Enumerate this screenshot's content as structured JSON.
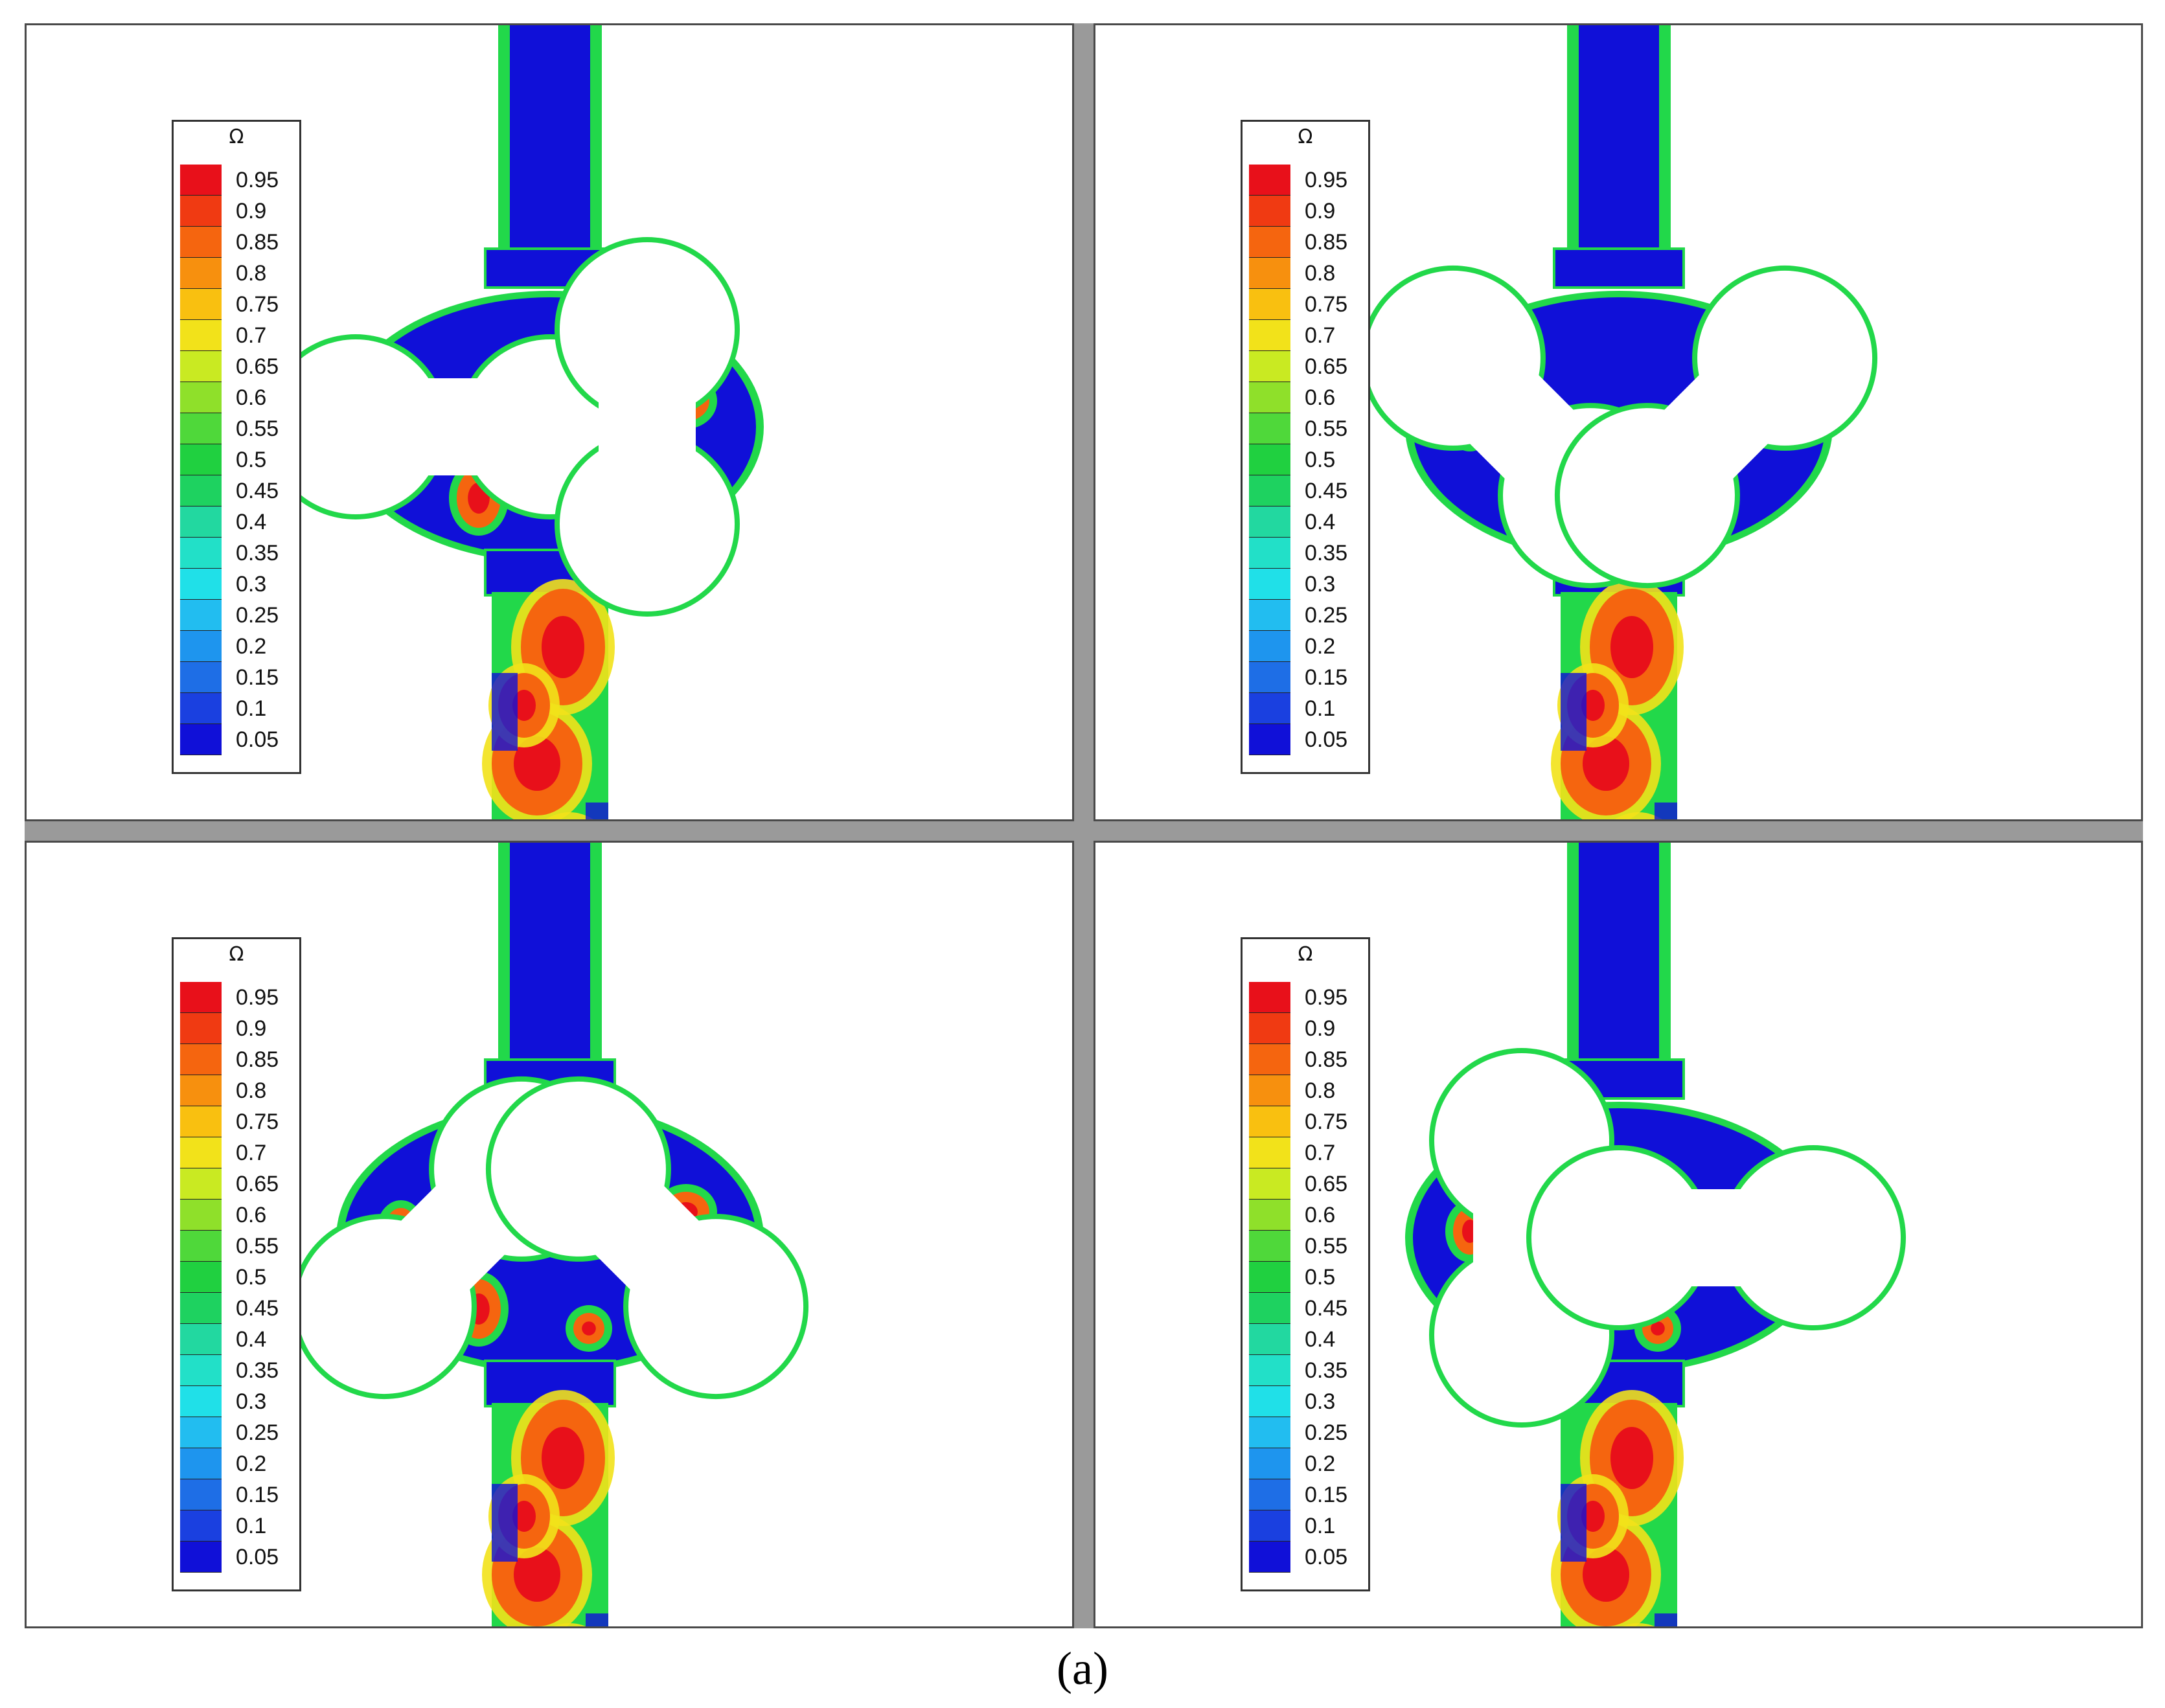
{
  "figure": {
    "caption": "(a)",
    "background": "#ffffff",
    "separator_color": "#9a9a9a",
    "panel_count": 4
  },
  "legend": {
    "symbol": "Ω",
    "levels": [
      "0.95",
      "0.9",
      "0.85",
      "0.8",
      "0.75",
      "0.7",
      "0.65",
      "0.6",
      "0.55",
      "0.5",
      "0.45",
      "0.4",
      "0.35",
      "0.3",
      "0.25",
      "0.2",
      "0.15",
      "0.1",
      "0.05"
    ],
    "colors": [
      "#e8101a",
      "#f03a12",
      "#f5650f",
      "#f7900e",
      "#f9c010",
      "#f2e21a",
      "#c9ea22",
      "#8fe02a",
      "#4fd83a",
      "#20d040",
      "#1ed260",
      "#22d8a0",
      "#22e0c8",
      "#20e0e8",
      "#22bdf0",
      "#1e95ee",
      "#1e6ee6",
      "#1a40e0",
      "#1010d8"
    ]
  },
  "panels": [
    {
      "id": "top-left",
      "rotor_left_angle": 0,
      "rotor_right_angle": 90
    },
    {
      "id": "top-right",
      "rotor_left_angle": 45,
      "rotor_right_angle": 135
    },
    {
      "id": "bottom-left",
      "rotor_left_angle": 135,
      "rotor_right_angle": 45
    },
    {
      "id": "bottom-right",
      "rotor_left_angle": 90,
      "rotor_right_angle": 0
    }
  ],
  "field_colors": {
    "low": "#1010d8",
    "mid": "#22d84a",
    "cyan": "#22d8e0",
    "yellow": "#f2e21a",
    "orange": "#f5650f",
    "high": "#e8101a"
  }
}
